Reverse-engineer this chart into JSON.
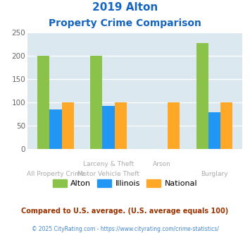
{
  "title_line1": "2019 Alton",
  "title_line2": "Property Crime Comparison",
  "top_labels": [
    "",
    "Larceny & Theft",
    "Arson",
    ""
  ],
  "bottom_labels": [
    "All Property Crime",
    "Motor Vehicle Theft",
    "",
    "Burglary"
  ],
  "alton": [
    200,
    200,
    0,
    228
  ],
  "illinois": [
    85,
    92,
    0,
    79
  ],
  "national": [
    100,
    100,
    100,
    100
  ],
  "color_alton": "#8bc34a",
  "color_illinois": "#2196f3",
  "color_national": "#ffa726",
  "ylim": [
    0,
    250
  ],
  "yticks": [
    0,
    50,
    100,
    150,
    200,
    250
  ],
  "bg_color": "#dce8ef",
  "title_color": "#1565c0",
  "footer_note": "Compared to U.S. average. (U.S. average equals 100)",
  "footer_copy": "© 2025 CityRating.com - https://www.cityrating.com/crime-statistics/",
  "legend_labels": [
    "Alton",
    "Illinois",
    "National"
  ],
  "label_color": "#aaaaaa",
  "footer_note_color": "#993300",
  "footer_copy_color": "#4488cc"
}
